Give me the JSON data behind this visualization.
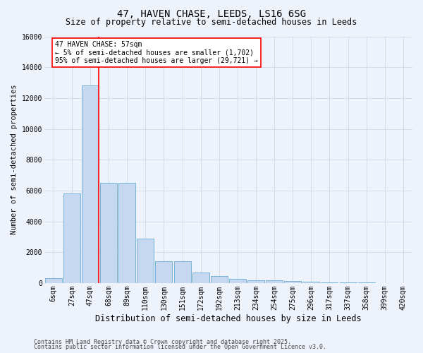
{
  "title1": "47, HAVEN CHASE, LEEDS, LS16 6SG",
  "title2": "Size of property relative to semi-detached houses in Leeds",
  "xlabel": "Distribution of semi-detached houses by size in Leeds",
  "ylabel": "Number of semi-detached properties",
  "bin_labels": [
    "6sqm",
    "27sqm",
    "47sqm",
    "68sqm",
    "89sqm",
    "110sqm",
    "130sqm",
    "151sqm",
    "172sqm",
    "192sqm",
    "213sqm",
    "234sqm",
    "254sqm",
    "275sqm",
    "296sqm",
    "317sqm",
    "337sqm",
    "358sqm",
    "399sqm",
    "420sqm"
  ],
  "bar_values": [
    300,
    5800,
    12800,
    6500,
    6500,
    2900,
    1400,
    1400,
    700,
    450,
    280,
    200,
    160,
    120,
    90,
    60,
    40,
    20,
    10,
    5
  ],
  "bar_color": "#c5d8f0",
  "bar_edgecolor": "#6aaad4",
  "red_line_index": 2,
  "annotation_title": "47 HAVEN CHASE: 57sqm",
  "annotation_line1": "← 5% of semi-detached houses are smaller (1,702)",
  "annotation_line2": "95% of semi-detached houses are larger (29,721) →",
  "ylim": [
    0,
    16000
  ],
  "yticks": [
    0,
    2000,
    4000,
    6000,
    8000,
    10000,
    12000,
    14000,
    16000
  ],
  "footer1": "Contains HM Land Registry data © Crown copyright and database right 2025.",
  "footer2": "Contains public sector information licensed under the Open Government Licence v3.0.",
  "background_color": "#eef2fb",
  "grid_color": "#d0d8e8",
  "title1_fontsize": 10,
  "title2_fontsize": 8.5,
  "xlabel_fontsize": 8.5,
  "ylabel_fontsize": 7.5,
  "tick_fontsize": 7,
  "annotation_fontsize": 7,
  "footer_fontsize": 6
}
